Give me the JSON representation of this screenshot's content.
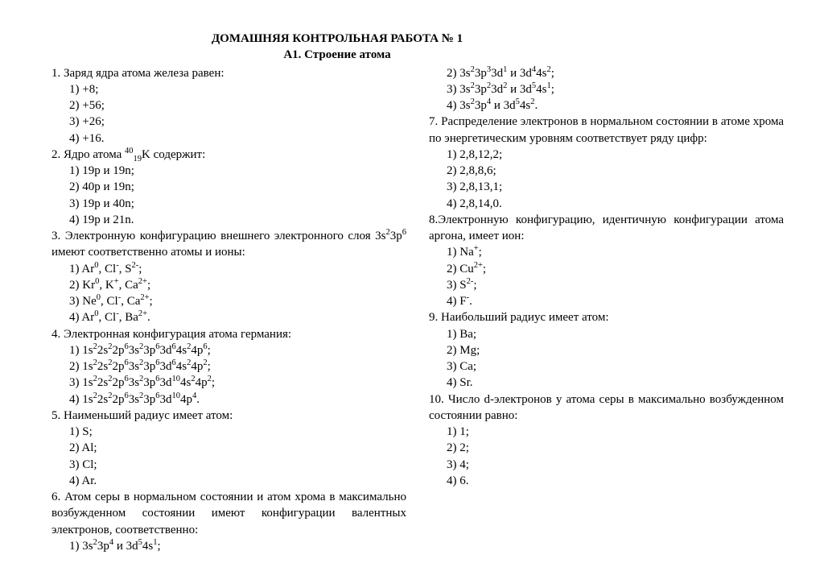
{
  "fontsize_body": 15,
  "font_family": "Times New Roman",
  "background_color": "#ffffff",
  "text_color": "#000000",
  "title1": "ДОМАШНЯЯ КОНТРОЛЬНАЯ РАБОТА № 1",
  "title2": "А1. Строение атома",
  "q1": {
    "text": "1. Заряд ядра атома железа равен:",
    "opts": [
      "1) +8;",
      "2) +56;",
      "3) +26;",
      "4) +16."
    ]
  },
  "q2": {
    "text_html": "2. Ядро атома <sup>40</sup><sub>19</sub>K содержит:",
    "opts": [
      "1)  19p и 19n;",
      "2)  40p и 19n;",
      "3)  19p и 40n;",
      "4)  19p и 21n."
    ]
  },
  "q3": {
    "text_html": "3. Электронную конфигурацию внешнего электронного слоя 3s<sup>2</sup>3p<sup>6</sup> имеют соответственно атомы и ионы:",
    "opts_html": [
      "1)  Ar<sup>0</sup>, Cl<sup>-</sup>, S<sup>2-</sup>;",
      "2)  Kr<sup>0</sup>, K<sup>+</sup>, Ca<sup>2+</sup>;",
      "3)  Ne<sup>0</sup>, Cl<sup>-</sup>, Ca<sup>2+</sup>;",
      "4)  Ar<sup>0</sup>, Cl<sup>-</sup>, Ba<sup>2+</sup>."
    ]
  },
  "q4": {
    "text": "4. Электронная конфигурация атома германия:",
    "opts_html": [
      "1)  1s<sup>2</sup>2s<sup>2</sup>2p<sup>6</sup>3s<sup>2</sup>3p<sup>6</sup>3d<sup>6</sup>4s<sup>2</sup>4p<sup>6</sup>;",
      "2)  1s<sup>2</sup>2s<sup>2</sup>2p<sup>6</sup>3s<sup>2</sup>3p<sup>6</sup>3d<sup>6</sup>4s<sup>2</sup>4p<sup>2</sup>;",
      "3)  1s<sup>2</sup>2s<sup>2</sup>2p<sup>6</sup>3s<sup>2</sup>3p<sup>6</sup>3d<sup>10</sup>4s<sup>2</sup>4p<sup>2</sup>;",
      "4)  1s<sup>2</sup>2s<sup>2</sup>2p<sup>6</sup>3s<sup>2</sup>3p<sup>6</sup>3d<sup>10</sup>4p<sup>4</sup>."
    ]
  },
  "q5": {
    "text": "5. Наименьший радиус имеет атом:",
    "opts": [
      "1)  S;",
      "2)  Al;",
      "3)  Cl;",
      "4)  Ar."
    ]
  },
  "q6": {
    "text": "6. Атом серы в нормальном состоянии и атом хрома в максимально возбужденном состоянии имеют конфигурации валентных электронов, соответственно:",
    "opts_html": [
      "1)  3s<sup>2</sup>3p<sup>4</sup> и 3d<sup>5</sup>4s<sup>1</sup>;",
      "2)  3s<sup>2</sup>3p<sup>3</sup>3d<sup>1</sup> и 3d<sup>4</sup>4s<sup>2</sup>;",
      "3)  3s<sup>2</sup>3p<sup>2</sup>3d<sup>2</sup> и 3d<sup>5</sup>4s<sup>1</sup>;",
      "4)  3s<sup>2</sup>3p<sup>4</sup> и 3d<sup>5</sup>4s<sup>2</sup>."
    ]
  },
  "q7": {
    "text": "7. Распределение электронов в нормальном состоянии в атоме хрома по энергетическим уровням соответствует ряду цифр:",
    "opts": [
      "1)  2,8,12,2;",
      "2)  2,8,8,6;",
      "3)  2,8,13,1;",
      "4)  2,8,14,0."
    ]
  },
  "q8": {
    "text": "8.Электронную конфигурацию, идентичную конфигурации атома аргона, имеет ион:",
    "opts_html": [
      "1)  Na<sup>+</sup>;",
      "2)  Cu<sup>2+</sup>;",
      "3)  S<sup>2-</sup>;",
      "4)  F<sup>-</sup>."
    ]
  },
  "q9": {
    "text": "9. Наибольший радиус имеет атом:",
    "opts": [
      "1)  Ba;",
      "2)  Mg;",
      "3)  Ca;",
      "4)  Sr."
    ]
  },
  "q10": {
    "text": "10. Число d-электронов у атома серы в максимально возбужденном состоянии равно:",
    "opts": [
      "1)  1;",
      "2)  2;",
      "3)  4;",
      "4)  6."
    ]
  }
}
